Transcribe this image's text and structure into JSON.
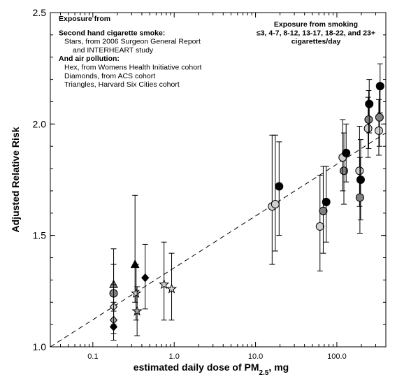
{
  "chart_data": {
    "type": "scatter",
    "xscale": "log",
    "xlim": [
      0.03,
      400
    ],
    "ylim": [
      1.0,
      2.5
    ],
    "xlabel_main": "estimated daily dose of PM",
    "xlabel_sub": "2.5",
    "xlabel_tail": ", mg",
    "ylabel": "Adjusted Relative Risk",
    "x_ticks": [
      {
        "value": 0.1,
        "label": "0.1"
      },
      {
        "value": 1,
        "label": "1.0"
      },
      {
        "value": 10,
        "label": "10.0"
      },
      {
        "value": 100,
        "label": "100.0"
      }
    ],
    "y_ticks": [
      {
        "value": 1.0,
        "label": "1.0"
      },
      {
        "value": 1.5,
        "label": "1.5"
      },
      {
        "value": 2.0,
        "label": "2.0"
      },
      {
        "value": 2.5,
        "label": "2.5"
      }
    ],
    "annotations": {
      "left": [
        {
          "text": "Exposure from",
          "bold": true
        },
        {
          "text": "",
          "bold": false
        },
        {
          "text": "Second hand cigarette smoke:",
          "bold": true
        },
        {
          "text": "Stars, from 2006 Surgeon General Report",
          "bold": false,
          "indent": true
        },
        {
          "text": "and INTERHEART study",
          "bold": false,
          "indent2": true
        },
        {
          "text": "And air pollution:",
          "bold": true
        },
        {
          "text": "Hex, from Womens Health Initiative cohort",
          "bold": false,
          "indent": true
        },
        {
          "text": "Diamonds, from ACS cohort",
          "bold": false,
          "indent": true
        },
        {
          "text": "Triangles, Harvard Six Cities cohort",
          "bold": false,
          "indent": true
        }
      ],
      "right": [
        "Exposure from smoking",
        "≤3, 4-7, 8-12, 13-17, 18-22, and 23+",
        "cigarettes/day"
      ]
    },
    "trend_line": {
      "x": [
        0.03,
        400
      ],
      "y": [
        1.0,
        1.96
      ],
      "style": "dashed"
    },
    "points": [
      {
        "shape": "triangle",
        "fill": "#808080",
        "x": 0.18,
        "y": 1.28,
        "lo": 1.18,
        "hi": 1.44
      },
      {
        "shape": "circle",
        "fill": "#808080",
        "x": 0.18,
        "y": 1.24,
        "lo": 1.12,
        "hi": 1.37
      },
      {
        "shape": "diamond",
        "fill": "#d0d0d0",
        "x": 0.18,
        "y": 1.18,
        "lo": 1.1,
        "hi": 1.28
      },
      {
        "shape": "diamond",
        "fill": "#a0a0a0",
        "x": 0.18,
        "y": 1.12,
        "lo": 1.06,
        "hi": 1.2
      },
      {
        "shape": "diamond",
        "fill": "#000000",
        "x": 0.18,
        "y": 1.09,
        "lo": 1.03,
        "hi": 1.16
      },
      {
        "shape": "triangle",
        "fill": "#000000",
        "x": 0.33,
        "y": 1.37,
        "lo": 1.2,
        "hi": 1.68
      },
      {
        "shape": "star",
        "fill": "#d0d0d0",
        "x": 0.34,
        "y": 1.24,
        "lo": 1.12,
        "hi": 1.37
      },
      {
        "shape": "star",
        "fill": "#a0a0a0",
        "x": 0.35,
        "y": 1.16,
        "lo": 1.05,
        "hi": 1.27
      },
      {
        "shape": "diamond",
        "fill": "#000000",
        "x": 0.44,
        "y": 1.31,
        "lo": 1.17,
        "hi": 1.46
      },
      {
        "shape": "star",
        "fill": "#d0d0d0",
        "x": 0.75,
        "y": 1.28,
        "lo": 1.12,
        "hi": 1.47
      },
      {
        "shape": "star",
        "fill": "#d0d0d0",
        "x": 0.93,
        "y": 1.26,
        "lo": 1.12,
        "hi": 1.42
      },
      {
        "shape": "circle",
        "fill": "#d0d0d0",
        "x": 16,
        "y": 1.63,
        "lo": 1.37,
        "hi": 1.95
      },
      {
        "shape": "circle",
        "fill": "#d0d0d0",
        "x": 17.5,
        "y": 1.64,
        "lo": 1.43,
        "hi": 1.95
      },
      {
        "shape": "circle",
        "fill": "#000000",
        "x": 19.5,
        "y": 1.72,
        "lo": 1.5,
        "hi": 1.92
      },
      {
        "shape": "circle",
        "fill": "#d0d0d0",
        "x": 62,
        "y": 1.54,
        "lo": 1.34,
        "hi": 1.77
      },
      {
        "shape": "circle",
        "fill": "#808080",
        "x": 68,
        "y": 1.61,
        "lo": 1.42,
        "hi": 1.81
      },
      {
        "shape": "circle",
        "fill": "#000000",
        "x": 74,
        "y": 1.65,
        "lo": 1.47,
        "hi": 1.81
      },
      {
        "shape": "circle",
        "fill": "#808080",
        "x": 122,
        "y": 1.79,
        "lo": 1.64,
        "hi": 1.96
      },
      {
        "shape": "circle",
        "fill": "#d0d0d0",
        "x": 118,
        "y": 1.85,
        "lo": 1.7,
        "hi": 2.02
      },
      {
        "shape": "circle",
        "fill": "#000000",
        "x": 130,
        "y": 1.87,
        "lo": 1.74,
        "hi": 2.0
      },
      {
        "shape": "circle",
        "fill": "#d0d0d0",
        "x": 190,
        "y": 1.79,
        "lo": 1.63,
        "hi": 1.99
      },
      {
        "shape": "circle",
        "fill": "#000000",
        "x": 196,
        "y": 1.75,
        "lo": 1.57,
        "hi": 1.93
      },
      {
        "shape": "circle",
        "fill": "#808080",
        "x": 192,
        "y": 1.67,
        "lo": 1.51,
        "hi": 1.85
      },
      {
        "shape": "circle",
        "fill": "#d0d0d0",
        "x": 242,
        "y": 1.98,
        "lo": 1.85,
        "hi": 2.12
      },
      {
        "shape": "circle",
        "fill": "#808080",
        "x": 246,
        "y": 2.02,
        "lo": 1.89,
        "hi": 2.15
      },
      {
        "shape": "circle",
        "fill": "#000000",
        "x": 250,
        "y": 2.09,
        "lo": 1.96,
        "hi": 2.2
      },
      {
        "shape": "circle",
        "fill": "#d0d0d0",
        "x": 328,
        "y": 1.97,
        "lo": 1.86,
        "hi": 2.11
      },
      {
        "shape": "circle",
        "fill": "#808080",
        "x": 334,
        "y": 2.03,
        "lo": 1.9,
        "hi": 2.16
      },
      {
        "shape": "circle",
        "fill": "#000000",
        "x": 340,
        "y": 2.17,
        "lo": 2.05,
        "hi": 2.27
      }
    ]
  }
}
